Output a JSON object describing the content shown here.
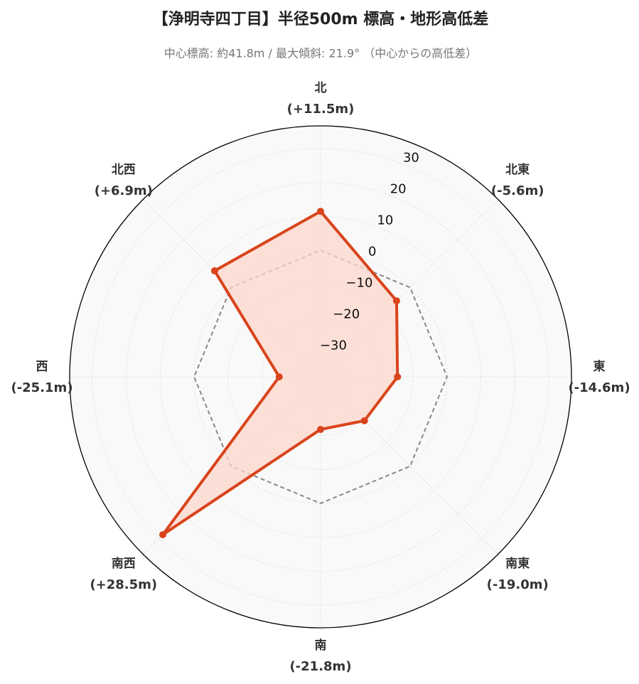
{
  "chart_data": {
    "type": "radar",
    "title": "【浄明寺四丁目】半径500m 標高・地形高低差",
    "subtitle": "中心標高: 約41.8m / 最大傾斜: 21.9° （中心からの高低差）",
    "categories": [
      "北",
      "北東",
      "東",
      "南東",
      "南",
      "南西",
      "西",
      "北西"
    ],
    "values": [
      11.5,
      -5.6,
      -14.6,
      -19.0,
      -21.8,
      28.5,
      -25.1,
      6.9
    ],
    "value_labels": [
      "(+11.5m)",
      "(-5.6m)",
      "(-14.6m)",
      "(-19.0m)",
      "(-21.8m)",
      "(+28.5m)",
      "(-25.1m)",
      "(+6.9m)"
    ],
    "color": "#d9441c",
    "fill_color": "#fcd5ca",
    "rlim": [
      -37.3,
      36.7
    ],
    "rticks": [
      {
        "value": -30,
        "label": "−30"
      },
      {
        "value": -20,
        "label": "−20"
      },
      {
        "value": -10,
        "label": "−10"
      },
      0,
      10,
      20,
      30
    ],
    "reference_line": {
      "value": 0,
      "color": "#888888"
    },
    "grid": true
  }
}
